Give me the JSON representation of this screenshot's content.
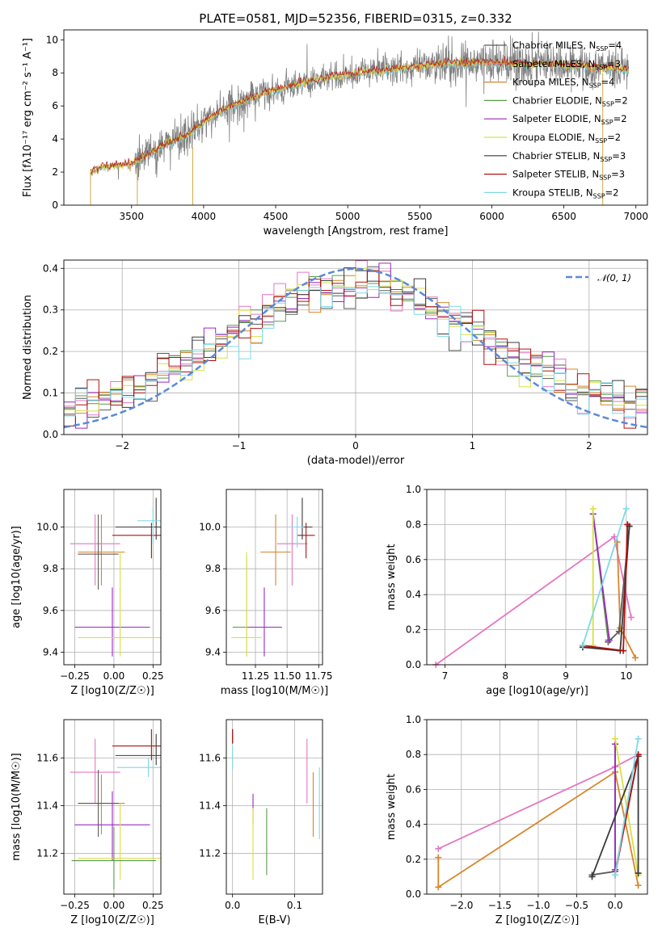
{
  "figure": {
    "title": "PLATE=0581, MJD=52356, FIBERID=0315, z=0.332"
  },
  "colors": {
    "Chabrier MILES": "#5b5b5b",
    "Salpeter MILES": "#e377c2",
    "Kroupa MILES": "#d6862a",
    "Chabrier ELODIE": "#5a9a4a",
    "Salpeter ELODIE": "#9a28c0",
    "Kroupa ELODIE": "#d8e040",
    "Chabrier STELIB": "#3a3a3a",
    "Salpeter STELIB": "#b01010",
    "Kroupa STELIB": "#7fd8e8",
    "data": "#808080",
    "gaussian": "#5b8ad8",
    "orange_extra": "#e8803a",
    "blue_extra": "#6aa8e0"
  },
  "chart_data": [
    {
      "id": "spectrum",
      "type": "line",
      "title": "PLATE=0581, MJD=52356, FIBERID=0315, z=0.332",
      "xlabel": "wavelength [Angstrom, rest frame]",
      "ylabel": "Flux [fλ10⁻¹⁷ erg cm⁻² s⁻¹ A⁻¹]",
      "xlim": [
        3030,
        7080
      ],
      "ylim": [
        0,
        10.6
      ],
      "xticks": [
        "3500",
        "4000",
        "4500",
        "5000",
        "5500",
        "6000",
        "6500",
        "7000"
      ],
      "yticks": [
        "0",
        "2",
        "4",
        "6",
        "8",
        "10"
      ],
      "legend": [
        "Chabrier MILES, N_SSP=4",
        "Salpeter MILES, N_SSP=3",
        "Kroupa MILES, N_SSP=4",
        "Chabrier ELODIE, N_SSP=2",
        "Salpeter ELODIE, N_SSP=2",
        "Kroupa ELODIE, N_SSP=2",
        "Chabrier STELIB, N_SSP=3",
        "Salpeter STELIB, N_SSP=3",
        "Kroupa STELIB, N_SSP=2"
      ],
      "legend_location": "top-right",
      "continuum": [
        [
          3215,
          2.0
        ],
        [
          3300,
          2.3
        ],
        [
          3500,
          2.5
        ],
        [
          3600,
          3.0
        ],
        [
          3700,
          3.5
        ],
        [
          3800,
          3.9
        ],
        [
          3900,
          4.3
        ],
        [
          4000,
          5.0
        ],
        [
          4100,
          5.6
        ],
        [
          4200,
          6.0
        ],
        [
          4400,
          6.7
        ],
        [
          4600,
          7.2
        ],
        [
          4800,
          7.6
        ],
        [
          5000,
          7.9
        ],
        [
          5200,
          8.1
        ],
        [
          5400,
          8.3
        ],
        [
          5600,
          8.5
        ],
        [
          5800,
          8.6
        ],
        [
          6000,
          8.6
        ],
        [
          6200,
          8.5
        ],
        [
          6400,
          8.5
        ],
        [
          6600,
          8.4
        ],
        [
          6800,
          8.3
        ],
        [
          6950,
          8.2
        ]
      ]
    },
    {
      "id": "residuals",
      "type": "line",
      "xlabel": "(data-model)/error",
      "ylabel": "Normed distribution",
      "xlim": [
        -2.5,
        2.5
      ],
      "ylim": [
        0,
        0.42
      ],
      "xticks": [
        "−2",
        "−1",
        "0",
        "1",
        "2"
      ],
      "yticks": [
        "0.0",
        "0.1",
        "0.2",
        "0.3",
        "0.4"
      ],
      "gaussian_label": "𝒩(0, 1)",
      "legend_location": "top-right",
      "bin_width": 0.1
    },
    {
      "id": "age_vs_Z",
      "type": "scatter",
      "xlabel": "Z [log10(Z/Z☉)]",
      "ylabel": "age  [log10(age/yr)]",
      "xlim": [
        -0.32,
        0.3
      ],
      "ylim": [
        9.34,
        10.18
      ],
      "xticks": [
        "−0.25",
        "0.00",
        "0.25"
      ],
      "yticks": [
        "9.4",
        "9.6",
        "9.8",
        "10.0"
      ],
      "points": [
        {
          "model": "Salpeter MILES",
          "x": -0.12,
          "y": 9.92,
          "xerr": 0.16,
          "yerr": [
            0.2,
            0.14
          ]
        },
        {
          "model": "Kroupa MILES",
          "x": -0.08,
          "y": 9.88,
          "xerr": 0.15,
          "yerr": [
            0.16,
            0.18
          ]
        },
        {
          "model": "Chabrier MILES",
          "x": -0.1,
          "y": 9.87,
          "xerr": 0.13,
          "yerr": [
            0.17,
            0.19
          ]
        },
        {
          "model": "Salpeter ELODIE",
          "x": -0.01,
          "y": 9.52,
          "xerr": 0.24,
          "yerr": [
            0.14,
            0.19
          ]
        },
        {
          "model": "Kroupa ELODIE",
          "x": 0.04,
          "y": 9.47,
          "xerr": 0.27,
          "yerr": [
            0.09,
            0.41
          ]
        },
        {
          "model": "Salpeter STELIB",
          "x": 0.24,
          "y": 9.96,
          "xerr": 0.25,
          "yerr": [
            0.11,
            0.06
          ]
        },
        {
          "model": "Chabrier STELIB",
          "x": 0.27,
          "y": 10.0,
          "xerr": 0.26,
          "yerr": [
            0.06,
            0.14
          ]
        },
        {
          "model": "Kroupa STELIB",
          "x": 0.25,
          "y": 10.03,
          "xerr": 0.1,
          "yerr": [
            0.11,
            0.06
          ]
        }
      ]
    },
    {
      "id": "age_vs_mass",
      "type": "scatter",
      "xlabel": "mass [log10(M/M☉)]",
      "ylabel": "",
      "xlim": [
        11.02,
        11.78
      ],
      "ylim": [
        9.34,
        10.18
      ],
      "xticks": [
        "11.25",
        "11.50",
        "11.75"
      ],
      "yticks": [
        "9.4",
        "9.6",
        "9.8",
        "10.0"
      ],
      "points": [
        {
          "model": "Salpeter MILES",
          "x": 11.54,
          "y": 9.92,
          "xerr": 0.12,
          "yerr": [
            0.2,
            0.14
          ]
        },
        {
          "model": "Kroupa MILES",
          "x": 11.41,
          "y": 9.88,
          "xerr": 0.12,
          "yerr": [
            0.16,
            0.18
          ]
        },
        {
          "model": "Chabrier ELODIE",
          "x": 11.18,
          "y": 9.52,
          "xerr": 0.11,
          "yerr": [
            0.14,
            0.34
          ]
        },
        {
          "model": "Salpeter ELODIE",
          "x": 11.32,
          "y": 9.52,
          "xerr": 0.14,
          "yerr": [
            0.14,
            0.19
          ]
        },
        {
          "model": "Kroupa ELODIE",
          "x": 11.18,
          "y": 9.47,
          "xerr": 0.12,
          "yerr": [
            0.09,
            0.41
          ]
        },
        {
          "model": "Salpeter STELIB",
          "x": 11.65,
          "y": 9.96,
          "xerr": 0.07,
          "yerr": [
            0.11,
            0.06
          ]
        },
        {
          "model": "Chabrier STELIB",
          "x": 11.62,
          "y": 10.0,
          "xerr": 0.08,
          "yerr": [
            0.06,
            0.14
          ]
        },
        {
          "model": "Kroupa STELIB",
          "x": 11.58,
          "y": 10.0,
          "xerr": 0.05,
          "yerr": [
            0.1,
            0.05
          ]
        }
      ]
    },
    {
      "id": "massweight_vs_age",
      "type": "line",
      "xlabel": "age  [log10(age/yr)]",
      "ylabel": "mass weight",
      "xlim": [
        6.7,
        10.35
      ],
      "ylim": [
        0,
        1
      ],
      "xticks": [
        "7",
        "8",
        "9",
        "10"
      ],
      "yticks": [
        "0.0",
        "0.2",
        "0.4",
        "0.6",
        "0.8",
        "1.0"
      ],
      "series": [
        {
          "model": "Salpeter MILES",
          "points": [
            [
              6.85,
              0.0
            ],
            [
              9.8,
              0.73
            ],
            [
              10.08,
              0.27
            ]
          ]
        },
        {
          "model": "Kroupa MILES",
          "points": [
            [
              9.85,
              0.7
            ],
            [
              9.9,
              0.21
            ],
            [
              10.15,
              0.04
            ]
          ]
        },
        {
          "model": "Chabrier MILES",
          "points": [
            [
              9.7,
              0.13
            ],
            [
              9.88,
              0.19
            ],
            [
              10.05,
              0.79
            ]
          ]
        },
        {
          "model": "Chabrier ELODIE",
          "points": [
            [
              9.45,
              0.86
            ],
            [
              9.7,
              0.14
            ]
          ]
        },
        {
          "model": "Salpeter ELODIE",
          "points": [
            [
              9.45,
              0.86
            ],
            [
              9.72,
              0.14
            ]
          ]
        },
        {
          "model": "Kroupa ELODIE",
          "points": [
            [
              9.45,
              0.89
            ],
            [
              9.45,
              0.11
            ]
          ]
        },
        {
          "model": "Chabrier STELIB",
          "points": [
            [
              9.28,
              0.1
            ],
            [
              9.9,
              0.08
            ],
            [
              10.05,
              0.79
            ]
          ]
        },
        {
          "model": "Salpeter STELIB",
          "points": [
            [
              9.28,
              0.11
            ],
            [
              9.95,
              0.08
            ],
            [
              10.02,
              0.8
            ]
          ]
        },
        {
          "model": "Kroupa STELIB",
          "points": [
            [
              9.28,
              0.11
            ],
            [
              10.0,
              0.89
            ]
          ]
        }
      ]
    },
    {
      "id": "mass_vs_Z",
      "type": "scatter",
      "xlabel": "Z [log10(Z/Z☉)]",
      "ylabel": "mass [log10(M/M☉)]",
      "xlim": [
        -0.32,
        0.3
      ],
      "ylim": [
        11.03,
        11.76
      ],
      "xticks": [
        "−0.25",
        "0.00",
        "0.25"
      ],
      "yticks": [
        "11.2",
        "11.4",
        "11.6"
      ],
      "points": [
        {
          "model": "Salpeter MILES",
          "x": -0.12,
          "y": 11.54,
          "xerr": 0.16,
          "yerr": [
            0.13,
            0.14
          ]
        },
        {
          "model": "Kroupa MILES",
          "x": -0.08,
          "y": 11.41,
          "xerr": 0.15,
          "yerr": [
            0.13,
            0.12
          ]
        },
        {
          "model": "Chabrier MILES",
          "x": -0.1,
          "y": 11.41,
          "xerr": 0.13,
          "yerr": [
            0.14,
            0.14
          ]
        },
        {
          "model": "Salpeter ELODIE",
          "x": -0.01,
          "y": 11.32,
          "xerr": 0.24,
          "yerr": [
            0.15,
            0.14
          ]
        },
        {
          "model": "Kroupa ELODIE",
          "x": 0.04,
          "y": 11.18,
          "xerr": 0.27,
          "yerr": [
            0.09,
            0.23
          ]
        },
        {
          "model": "Chabrier ELODIE",
          "x": 0.0,
          "y": 11.17,
          "xerr": 0.27,
          "yerr": [
            0.12,
            0.14
          ]
        },
        {
          "model": "Salpeter STELIB",
          "x": 0.24,
          "y": 11.65,
          "xerr": 0.25,
          "yerr": [
            0.06,
            0.07
          ]
        },
        {
          "model": "Chabrier STELIB",
          "x": 0.27,
          "y": 11.61,
          "xerr": 0.26,
          "yerr": [
            0.04,
            0.09
          ]
        },
        {
          "model": "Kroupa STELIB",
          "x": 0.22,
          "y": 11.56,
          "xerr": 0.2,
          "yerr": [
            0.04,
            0.04
          ]
        }
      ]
    },
    {
      "id": "mass_vs_EBV",
      "type": "scatter",
      "xlabel": "E(B-V)",
      "ylabel": "",
      "xlim": [
        -0.01,
        0.145
      ],
      "ylim": [
        11.03,
        11.76
      ],
      "xticks": [
        "0.0",
        "0.1"
      ],
      "yticks": [
        "11.2",
        "11.4",
        "11.6"
      ],
      "points": [
        {
          "model": "Chabrier ELODIE",
          "x": 0.055,
          "y": 11.25,
          "yerr": [
            0.14,
            0.14
          ]
        },
        {
          "model": "Salpeter ELODIE",
          "x": 0.033,
          "y": 11.38,
          "yerr": [
            0.06,
            0.07
          ]
        },
        {
          "model": "Kroupa ELODIE",
          "x": 0.033,
          "y": 11.2,
          "yerr": [
            0.11,
            0.19
          ]
        },
        {
          "model": "Salpeter MILES",
          "x": 0.12,
          "y": 11.54,
          "yerr": [
            0.13,
            0.14
          ]
        },
        {
          "model": "Kroupa MILES",
          "x": 0.13,
          "y": 11.41,
          "yerr": [
            0.14,
            0.13
          ]
        },
        {
          "model": "Kroupa STELIB",
          "x": 0.14,
          "y": 11.41,
          "yerr": [
            0.15,
            0.15
          ]
        },
        {
          "model": "Chabrier STELIB",
          "x": 0.0,
          "y": 11.69,
          "yerr": [
            0.03,
            0.03
          ]
        },
        {
          "model": "Salpeter STELIB",
          "x": 0.0,
          "y": 11.69,
          "yerr": [
            0.03,
            0.03
          ]
        },
        {
          "model": "Kroupa STELIB",
          "x": 0.0,
          "y": 11.6,
          "yerr": [
            0.05,
            0.05
          ]
        }
      ]
    },
    {
      "id": "massweight_vs_Z",
      "type": "line",
      "xlabel": "Z [log10(Z/Z☉)]",
      "ylabel": "mass weight",
      "xlim": [
        -2.45,
        0.42
      ],
      "ylim": [
        0,
        1
      ],
      "xticks": [
        "−2.0",
        "−1.5",
        "−1.0",
        "−0.5",
        "0.0"
      ],
      "yticks": [
        "0.0",
        "0.2",
        "0.4",
        "0.6",
        "0.8",
        "1.0"
      ],
      "series": [
        {
          "model": "Salpeter MILES",
          "points": [
            [
              -2.3,
              0.26
            ],
            [
              0.0,
              0.73
            ],
            [
              0.3,
              0.8
            ]
          ]
        },
        {
          "model": "Kroupa MILES",
          "points": [
            [
              -2.3,
              0.21
            ],
            [
              -2.3,
              0.04
            ],
            [
              0.0,
              0.7
            ],
            [
              0.3,
              0.05
            ]
          ]
        },
        {
          "model": "Chabrier MILES",
          "points": [
            [
              -0.3,
              0.11
            ],
            [
              0.0,
              0.13
            ],
            [
              0.3,
              0.79
            ]
          ]
        },
        {
          "model": "Chabrier ELODIE",
          "points": [
            [
              0.0,
              0.86
            ],
            [
              0.0,
              0.14
            ]
          ]
        },
        {
          "model": "Salpeter ELODIE",
          "points": [
            [
              0.0,
              0.86
            ],
            [
              0.0,
              0.14
            ]
          ]
        },
        {
          "model": "Kroupa ELODIE",
          "points": [
            [
              0.0,
              0.89
            ],
            [
              0.3,
              0.11
            ]
          ]
        },
        {
          "model": "Chabrier STELIB",
          "points": [
            [
              -0.3,
              0.1
            ],
            [
              0.3,
              0.79
            ],
            [
              0.3,
              0.12
            ]
          ]
        },
        {
          "model": "Salpeter STELIB",
          "points": [
            [
              0.0,
              0.11
            ],
            [
              0.3,
              0.8
            ]
          ]
        },
        {
          "model": "Kroupa STELIB",
          "points": [
            [
              0.0,
              0.11
            ],
            [
              0.3,
              0.89
            ]
          ]
        }
      ]
    }
  ]
}
